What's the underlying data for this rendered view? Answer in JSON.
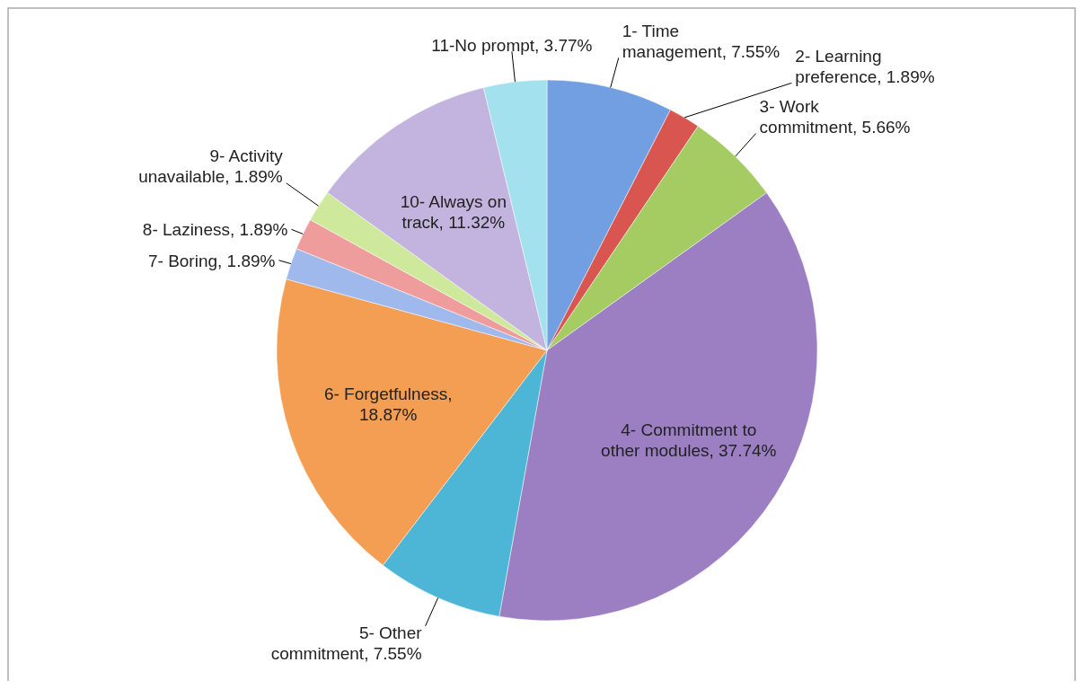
{
  "chart_data": {
    "type": "pie",
    "categories": [
      "1- Time management",
      "2- Learning preference",
      "3- Work commitment",
      "4- Commitment to other modules",
      "5- Other commitment",
      "6- Forgetfulness",
      "7- Boring",
      "8- Laziness",
      "9- Activity unavailable",
      "10- Always on track",
      "11-No prompt"
    ],
    "value_labels": [
      ", 7.55%",
      ", 1.89%",
      ", 5.66%",
      ", 37.74%",
      ", 7.55%",
      ", 18.87%",
      ", 1.89%",
      ", 1.89%",
      ", 1.89%",
      ", 11.32%",
      ", 3.77%"
    ],
    "values": [
      7.55,
      1.89,
      5.66,
      37.74,
      7.55,
      18.87,
      1.89,
      1.89,
      1.89,
      11.32,
      3.77
    ],
    "colors": [
      "#729ee2",
      "#d95550",
      "#a4cc62",
      "#9b7fc2",
      "#4db5d5",
      "#f39e52",
      "#9fb9ec",
      "#ef9c9c",
      "#cfe99c",
      "#c3b3df",
      "#a3e1ef"
    ],
    "legend": false
  }
}
